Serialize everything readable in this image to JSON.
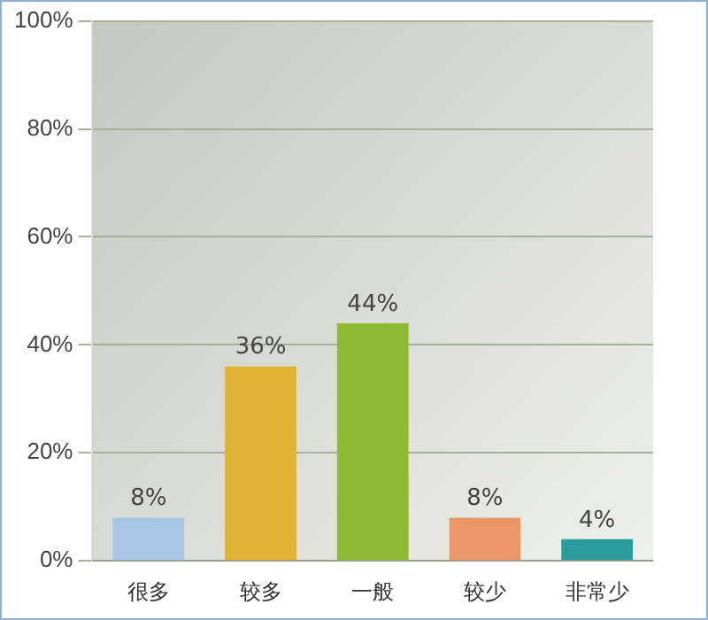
{
  "chart_data": {
    "type": "bar",
    "categories": [
      "很多",
      "较多",
      "一般",
      "较少",
      "非常少"
    ],
    "values": [
      8,
      36,
      44,
      8,
      4
    ],
    "colors": [
      "#a9c5e6",
      "#e2b232",
      "#8cba32",
      "#ea9868",
      "#2b9c9e"
    ],
    "value_labels": [
      "8%",
      "36%",
      "44%",
      "8%",
      "4%"
    ],
    "ylim": [
      0,
      100
    ],
    "yticks": [
      {
        "value": 0,
        "label": "0%"
      },
      {
        "value": 20,
        "label": "20%"
      },
      {
        "value": 40,
        "label": "40%"
      },
      {
        "value": 60,
        "label": "60%"
      },
      {
        "value": 80,
        "label": "80%"
      },
      {
        "value": 100,
        "label": "100%"
      }
    ],
    "grid": "y",
    "legend": false
  }
}
